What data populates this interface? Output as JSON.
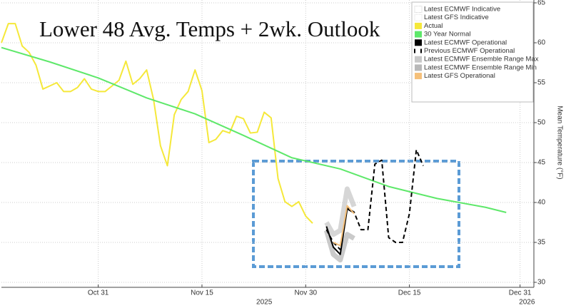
{
  "chart_data": {
    "type": "line",
    "title": "Lower 48 Avg. Temps + 2wk. Outlook",
    "y_label": "Mean Temperature (°F)",
    "xlim": [
      "2025-10-17",
      "2026-01-02"
    ],
    "xticks": [
      {
        "value": "2025-10-31",
        "label": "Oct 31"
      },
      {
        "value": "2025-11-15",
        "label": "Nov 15"
      },
      {
        "value": "2025-11-30",
        "label": "Nov 30"
      },
      {
        "value": "2025-12-15",
        "label": "Dec 15"
      },
      {
        "value": "2025-12-31",
        "label": "Dec 31"
      }
    ],
    "x_year_labels": [
      {
        "value": "2025-11-24",
        "label": "2025"
      },
      {
        "value": "2026-01-01",
        "label": "2026"
      }
    ],
    "ylim": [
      30,
      65
    ],
    "yticks": [
      30,
      35,
      40,
      45,
      50,
      55,
      60,
      65
    ],
    "grid": true,
    "series": [
      {
        "name": "Latest ECMWF Indicative",
        "color": "#cccccc",
        "dotted": true,
        "x": [],
        "values": []
      },
      {
        "name": "Latest GFS Indicative",
        "color": "#dddddd",
        "dotted": true,
        "x": [],
        "values": []
      },
      {
        "name": "Actual",
        "color": "#f5e83a",
        "x": [
          "2025-10-17",
          "2025-10-18",
          "2025-10-19",
          "2025-10-20",
          "2025-10-21",
          "2025-10-22",
          "2025-10-23",
          "2025-10-24",
          "2025-10-25",
          "2025-10-26",
          "2025-10-27",
          "2025-10-28",
          "2025-10-29",
          "2025-10-30",
          "2025-10-31",
          "2025-11-01",
          "2025-11-02",
          "2025-11-03",
          "2025-11-04",
          "2025-11-05",
          "2025-11-06",
          "2025-11-07",
          "2025-11-08",
          "2025-11-09",
          "2025-11-10",
          "2025-11-11",
          "2025-11-12",
          "2025-11-13",
          "2025-11-14",
          "2025-11-15",
          "2025-11-16",
          "2025-11-17",
          "2025-11-18",
          "2025-11-19",
          "2025-11-20",
          "2025-11-21",
          "2025-11-22",
          "2025-11-23",
          "2025-11-24",
          "2025-11-25",
          "2025-11-26",
          "2025-11-27",
          "2025-11-28",
          "2025-11-29",
          "2025-11-30",
          "2025-12-01"
        ],
        "values": [
          60.0,
          62.4,
          62.4,
          59.6,
          58.8,
          57.2,
          54.2,
          54.6,
          55.0,
          53.9,
          53.9,
          54.4,
          55.5,
          54.2,
          53.9,
          53.9,
          54.6,
          55.3,
          57.7,
          54.8,
          55.5,
          56.6,
          52.9,
          47.1,
          44.6,
          51.0,
          52.9,
          53.9,
          56.6,
          54.0,
          47.5,
          47.9,
          49.0,
          48.7,
          50.8,
          50.5,
          48.7,
          48.8,
          51.3,
          50.6,
          43.0,
          40.1,
          39.5,
          40.1,
          38.3,
          37.4
        ]
      },
      {
        "name": "30 Year Normal",
        "color": "#5ee86a",
        "x": [
          "2025-10-17",
          "2025-10-24",
          "2025-10-31",
          "2025-11-07",
          "2025-11-14",
          "2025-11-21",
          "2025-11-28",
          "2025-12-05",
          "2025-12-12",
          "2025-12-19",
          "2025-12-26",
          "2025-12-29"
        ],
        "values": [
          59.4,
          57.6,
          55.6,
          53.1,
          51.1,
          48.4,
          45.6,
          44.2,
          42.0,
          40.5,
          39.4,
          38.75
        ]
      },
      {
        "name": "Latest ECMWF Operational",
        "color": "#000000",
        "x": [
          "2025-12-03",
          "2025-12-04",
          "2025-12-05",
          "2025-12-06",
          "2025-12-07"
        ],
        "values": [
          37.0,
          34.4,
          33.5,
          39.2,
          38.7
        ]
      },
      {
        "name": "Previous ECMWF Operational",
        "color": "#000000",
        "dashed": true,
        "x": [
          "2025-12-03",
          "2025-12-04",
          "2025-12-05",
          "2025-12-06",
          "2025-12-07",
          "2025-12-08",
          "2025-12-09",
          "2025-12-10",
          "2025-12-11",
          "2025-12-12",
          "2025-12-13",
          "2025-12-14",
          "2025-12-15",
          "2025-12-16",
          "2025-12-17"
        ],
        "values": [
          36.6,
          35.0,
          34.1,
          39.3,
          38.8,
          36.6,
          36.6,
          44.8,
          45.3,
          35.6,
          35.0,
          35.0,
          38.6,
          46.6,
          44.6
        ]
      },
      {
        "name": "Latest ECMWF Ensemble Range Max",
        "color": "#c8c8c8",
        "band": true,
        "x": [
          "2025-12-03",
          "2025-12-04",
          "2025-12-05",
          "2025-12-06",
          "2025-12-07"
        ],
        "values": [
          37.5,
          36.0,
          36.5,
          41.7,
          39.5
        ]
      },
      {
        "name": "Latest ECMWF Ensemble Range Min",
        "color": "#b8b8b8",
        "band": true,
        "x": [
          "2025-12-03",
          "2025-12-04",
          "2025-12-05",
          "2025-12-06",
          "2025-12-07"
        ],
        "values": [
          36.5,
          33.5,
          32.8,
          36.0,
          35.5
        ]
      },
      {
        "name": "Latest GFS Operational",
        "color": "#f5c07a",
        "x": [
          "2025-12-04",
          "2025-12-05",
          "2025-12-06",
          "2025-12-07"
        ],
        "values": [
          35.0,
          34.6,
          39.6,
          38.6
        ]
      }
    ]
  }
}
